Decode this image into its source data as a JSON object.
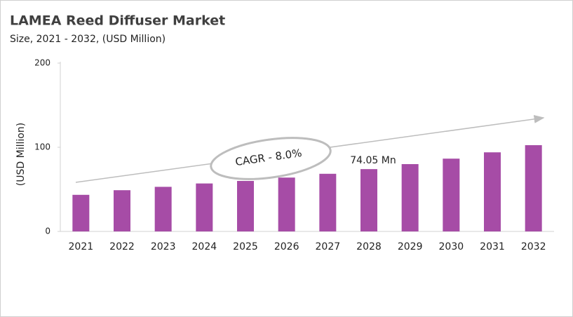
{
  "chart_data": {
    "type": "bar",
    "title": "LAMEA Reed Diffuser Market",
    "subtitle": "Size, 2021 - 2032, (USD Million)",
    "y_label": "(USD Million)",
    "categories": [
      "2021",
      "2022",
      "2023",
      "2024",
      "2025",
      "2026",
      "2027",
      "2028",
      "2029",
      "2030",
      "2031",
      "2032"
    ],
    "values": [
      43.5,
      49,
      53,
      57,
      60,
      64,
      68.5,
      74.05,
      80,
      86.5,
      94,
      102.5
    ],
    "value_labels": [
      null,
      null,
      null,
      null,
      null,
      null,
      null,
      "74.05 Mn",
      null,
      null,
      null,
      null
    ],
    "annotation": "CAGR - 8.0%",
    "color": "#a64ca6",
    "ylim": [
      0,
      200
    ],
    "yticks": [
      0,
      100,
      200
    ],
    "grid": false
  }
}
